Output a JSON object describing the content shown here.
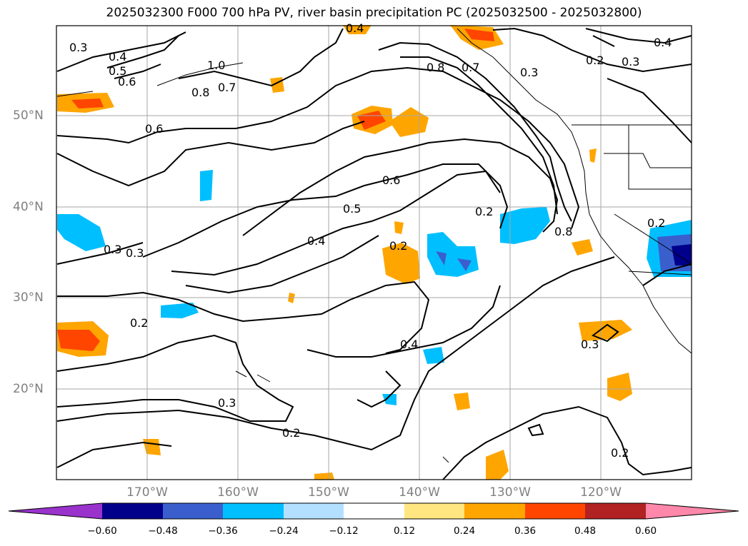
{
  "title": "2025032300 F000 700 hPa PV, river basin precipitation PC (2025032500 - 2025032800)",
  "lat_labels": [
    "50°N",
    "40°N",
    "30°N",
    "20°N"
  ],
  "lon_labels": [
    "170°W",
    "160°W",
    "150°W",
    "140°W",
    "130°W",
    "120°W"
  ],
  "contour_labels": [
    "0.3",
    "0.4",
    "0.5",
    "0.6",
    "1.0",
    "0.8",
    "0.7",
    "0.4",
    "0.8",
    "0.7",
    "0.3",
    "0.2",
    "0.3",
    "0.4",
    "0.6",
    "0.6",
    "0.5",
    "0.4",
    "0.3",
    "0.3",
    "0.2",
    "0.2",
    "0.2",
    "0.8",
    "0.2",
    "0.4",
    "0.3",
    "0.3",
    "0.2",
    "0.2"
  ],
  "colorbar": {
    "ticks": [
      "−0.60",
      "−0.48",
      "−0.36",
      "−0.24",
      "−0.12",
      "0.12",
      "0.24",
      "0.36",
      "0.48",
      "0.60"
    ],
    "colors": [
      "#9933cc",
      "#00008b",
      "#3a5fcd",
      "#00bfff",
      "#b3e0ff",
      "#ffffff",
      "#ffe680",
      "#ffa500",
      "#ff4500",
      "#b22222",
      "#ff88aa"
    ]
  }
}
